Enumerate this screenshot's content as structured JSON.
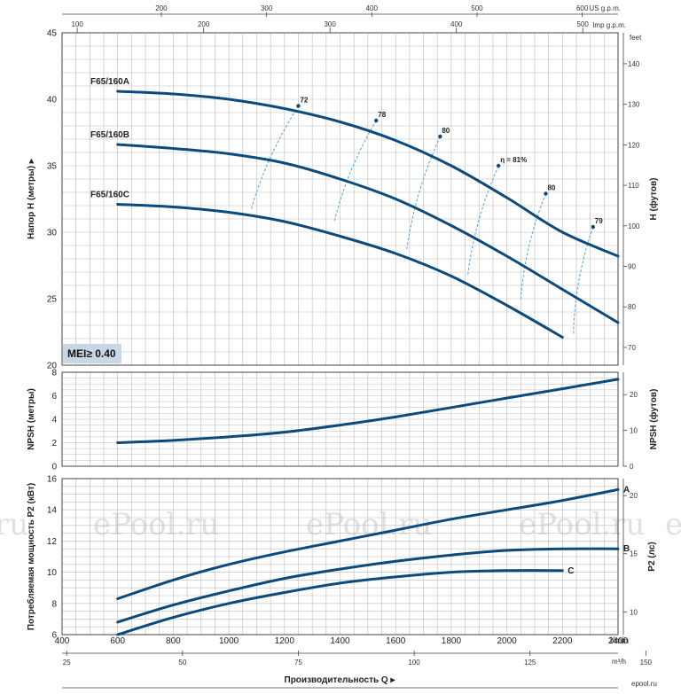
{
  "watermarks": [
    "ru",
    "ePool.ru",
    "ePool.ru",
    "ePool.ru",
    "ePool.ru"
  ],
  "site_logo": "epool.ru",
  "mei": "MEI≥ 0.40",
  "x_axis": {
    "lmin_ticks": [
      400,
      600,
      800,
      1000,
      1200,
      1400,
      1600,
      1800,
      2000,
      2200,
      2400
    ],
    "lmin_unit": "l/min",
    "m3h_ticks": [
      25,
      50,
      75,
      100,
      125,
      150
    ],
    "m3h_unit": "m³/h",
    "usgpm_ticks": [
      200,
      300,
      400,
      500,
      600
    ],
    "usgpm_unit": "US g.p.m.",
    "impgpm_ticks": [
      100,
      200,
      300,
      400,
      500
    ],
    "impgpm_unit": "Imp g.p.m.",
    "title": "Производительность Q"
  },
  "chart_data": [
    {
      "type": "line",
      "title": "",
      "xlabel": "Производительность Q",
      "ylabel": "Напор H (метры)",
      "ylabel_right": "H (футов)",
      "right_unit": "feet",
      "xlim": [
        400,
        2400
      ],
      "ylim": [
        20,
        45
      ],
      "y_ticks": [
        20,
        25,
        30,
        35,
        40,
        45
      ],
      "y_ticks_right": [
        70,
        80,
        90,
        100,
        110,
        120,
        130,
        140
      ],
      "series": [
        {
          "name": "F65/160A",
          "x": [
            600,
            800,
            1000,
            1200,
            1400,
            1600,
            1800,
            2000,
            2200,
            2400
          ],
          "values": [
            40.6,
            40.4,
            40.0,
            39.3,
            38.3,
            36.9,
            35.0,
            32.6,
            30.0,
            28.2
          ]
        },
        {
          "name": "F65/160B",
          "x": [
            600,
            800,
            1000,
            1200,
            1400,
            1600,
            1800,
            2000,
            2200,
            2400
          ],
          "values": [
            36.6,
            36.3,
            35.9,
            35.2,
            34.0,
            32.5,
            30.5,
            28.2,
            25.7,
            23.2
          ]
        },
        {
          "name": "F65/160C",
          "x": [
            600,
            800,
            1000,
            1200,
            1400,
            1600,
            1800,
            2000,
            2200
          ],
          "values": [
            32.1,
            31.9,
            31.5,
            30.8,
            29.7,
            28.4,
            26.7,
            24.5,
            22.1
          ]
        }
      ],
      "efficiency_labels": [
        "72",
        "78",
        "80",
        "η = 81%",
        "80",
        "79"
      ],
      "efficiency_lines": [
        {
          "label": "72",
          "points": [
            [
              1250,
              39.5
            ],
            [
              1080,
              31.7
            ]
          ]
        },
        {
          "label": "78",
          "points": [
            [
              1530,
              38.4
            ],
            [
              1380,
              30.8
            ]
          ]
        },
        {
          "label": "80",
          "points": [
            [
              1760,
              37.2
            ],
            [
              1640,
              28.7
            ]
          ]
        },
        {
          "label": "η = 81%",
          "points": [
            [
              1970,
              35.0
            ],
            [
              1860,
              26.8
            ]
          ]
        },
        {
          "label": "80",
          "points": [
            [
              2140,
              32.9
            ],
            [
              2050,
              24.9
            ]
          ]
        },
        {
          "label": "79",
          "points": [
            [
              2310,
              30.4
            ],
            [
              2240,
              22.3
            ]
          ]
        }
      ]
    },
    {
      "type": "line",
      "title": "",
      "ylabel": "NPSH (метры)",
      "ylabel_right": "NPSH (футов)",
      "xlim": [
        400,
        2400
      ],
      "ylim": [
        0,
        8
      ],
      "y_ticks": [
        0,
        2,
        4,
        6,
        8
      ],
      "y_ticks_right": [
        0,
        10,
        20
      ],
      "series": [
        {
          "name": "NPSH",
          "x": [
            600,
            800,
            1000,
            1200,
            1400,
            1600,
            1800,
            2000,
            2200,
            2400
          ],
          "values": [
            2.0,
            2.2,
            2.5,
            2.9,
            3.5,
            4.2,
            5.0,
            5.8,
            6.6,
            7.4
          ]
        }
      ]
    },
    {
      "type": "line",
      "title": "",
      "ylabel": "Потребляемая мощность P2 (кВт)",
      "ylabel_right": "P2 (лс)",
      "xlim": [
        400,
        2400
      ],
      "ylim": [
        6,
        16
      ],
      "y_ticks": [
        6,
        8,
        10,
        12,
        14,
        16
      ],
      "y_ticks_right": [
        10,
        15,
        20
      ],
      "series": [
        {
          "name": "A",
          "x": [
            600,
            800,
            1000,
            1200,
            1400,
            1600,
            1800,
            2000,
            2200,
            2400
          ],
          "values": [
            8.3,
            9.5,
            10.5,
            11.3,
            12.0,
            12.7,
            13.4,
            14.0,
            14.6,
            15.3
          ]
        },
        {
          "name": "B",
          "x": [
            600,
            800,
            1000,
            1200,
            1400,
            1600,
            1800,
            2000,
            2200,
            2400
          ],
          "values": [
            6.8,
            7.9,
            8.8,
            9.6,
            10.2,
            10.7,
            11.1,
            11.4,
            11.5,
            11.5
          ]
        },
        {
          "name": "C",
          "x": [
            600,
            800,
            1000,
            1200,
            1400,
            1600,
            1800,
            2000,
            2200
          ],
          "values": [
            6.0,
            7.1,
            8.0,
            8.7,
            9.3,
            9.7,
            10.0,
            10.1,
            10.1
          ]
        }
      ]
    }
  ],
  "colors": {
    "curve": "#0b4a7c",
    "grid": "#bcbcbc",
    "frame": "#444444",
    "eff": "#5aa0d8",
    "mei_bg": "#c9d6e6"
  }
}
